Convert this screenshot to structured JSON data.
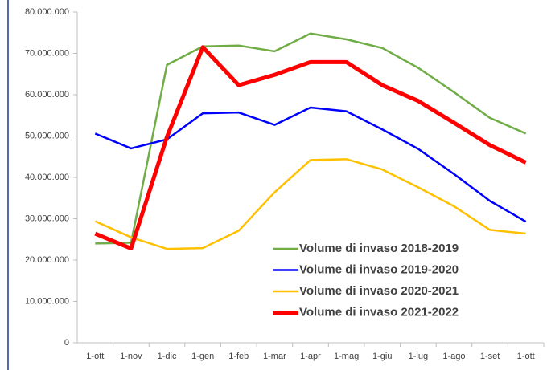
{
  "chart_data": {
    "type": "line",
    "categories": [
      "1-ott",
      "1-nov",
      "1-dic",
      "1-gen",
      "1-feb",
      "1-mar",
      "1-apr",
      "1-mag",
      "1-giu",
      "1-lug",
      "1-ago",
      "1-set",
      "1-ott"
    ],
    "series": [
      {
        "name": "Volume di invaso 2018-2019",
        "color": "#70ad47",
        "width": 2.5,
        "values": [
          24000000,
          24200000,
          67200000,
          71700000,
          71900000,
          70500000,
          74800000,
          73400000,
          71300000,
          66500000,
          60600000,
          54400000,
          50600000
        ]
      },
      {
        "name": "Volume di invaso 2019-2020",
        "color": "#0000ff",
        "width": 2.5,
        "values": [
          50600000,
          47000000,
          49200000,
          55500000,
          55700000,
          52700000,
          56900000,
          56000000,
          51600000,
          46900000,
          40800000,
          34300000,
          29300000
        ]
      },
      {
        "name": "Volume di invaso 2020-2021",
        "color": "#ffc000",
        "width": 2.5,
        "values": [
          29400000,
          25500000,
          22700000,
          22900000,
          27100000,
          36400000,
          44200000,
          44400000,
          41900000,
          37600000,
          33000000,
          27300000,
          26400000
        ]
      },
      {
        "name": "Volume di invaso 2021-2022",
        "color": "#ff0000",
        "width": 5,
        "values": [
          26400000,
          22800000,
          49800000,
          71500000,
          62300000,
          64800000,
          67900000,
          67900000,
          62300000,
          58500000,
          53200000,
          47800000,
          43600000
        ]
      }
    ],
    "ylim": [
      0,
      80000000
    ],
    "yticks": [
      0,
      {
        "value": 10000000,
        "label": "10.000.000"
      },
      {
        "value": 20000000,
        "label": "20.000.000"
      },
      {
        "value": 30000000,
        "label": "30.000.000"
      },
      {
        "value": 40000000,
        "label": "40.000.000"
      },
      {
        "value": 50000000,
        "label": "50.000.000"
      },
      {
        "value": 60000000,
        "label": "60.000.000"
      },
      {
        "value": 70000000,
        "label": "70.000.000"
      },
      {
        "value": 80000000,
        "label": "80.000.000"
      }
    ],
    "grid": false,
    "legend": "lower right"
  }
}
